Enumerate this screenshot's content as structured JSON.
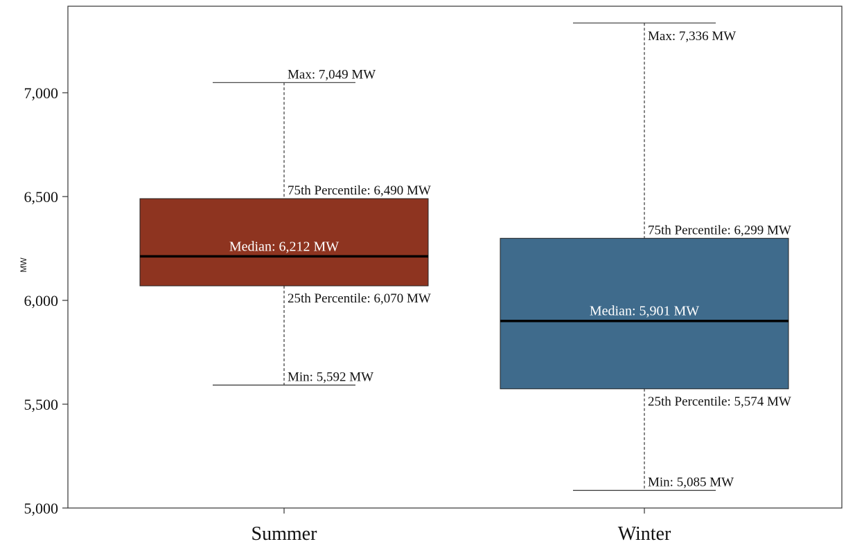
{
  "chart_data": {
    "type": "box",
    "ylabel": "MW",
    "ylim": [
      5000,
      7400
    ],
    "yticks": [
      5000,
      5500,
      6000,
      6500,
      7000
    ],
    "ytick_labels": [
      "5,000",
      "5,500",
      "6,000",
      "6,500",
      "7,000"
    ],
    "categories": [
      "Summer",
      "Winter"
    ],
    "boxes": [
      {
        "category": "Summer",
        "color": "#8e3420",
        "min": 5592,
        "q1": 6070,
        "median": 6212,
        "q3": 6490,
        "max": 7049,
        "labels": {
          "max": "Max: 7,049 MW",
          "q3": "75th Percentile: 6,490 MW",
          "median": "Median: 6,212 MW",
          "q1": "25th Percentile: 6,070 MW",
          "min": "Min: 5,592 MW"
        }
      },
      {
        "category": "Winter",
        "color": "#3f6b8c",
        "min": 5085,
        "q1": 5574,
        "median": 5901,
        "q3": 6299,
        "max": 7336,
        "labels": {
          "max": "Max: 7,336 MW",
          "q3": "75th Percentile: 6,299 MW",
          "median": "Median: 5,901 MW",
          "q1": "25th Percentile: 5,574 MW",
          "min": "Min: 5,085 MW"
        }
      }
    ],
    "grid": false,
    "legend": "none"
  }
}
